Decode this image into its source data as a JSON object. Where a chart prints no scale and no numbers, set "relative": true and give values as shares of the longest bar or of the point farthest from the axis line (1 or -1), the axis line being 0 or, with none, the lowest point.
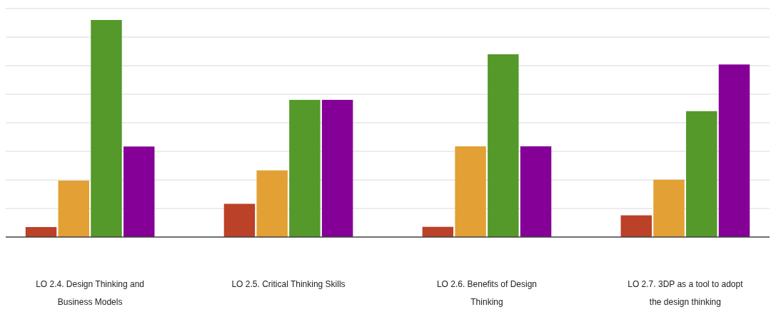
{
  "chart_data": {
    "type": "bar",
    "relative": true,
    "grid": "y",
    "categories": [
      "LO 2.4. Design Thinking and Business Models",
      "LO 2.5. Critical Thinking Skills",
      "LO 2.6. Benefits of Design Thinking",
      "LO 2.7. 3DP as a tool to adopt the design thinking"
    ],
    "series": [
      {
        "color": "#bb4128",
        "values": [
          0.046,
          0.153,
          0.047,
          0.1
        ]
      },
      {
        "color": "#e3a034",
        "values": [
          0.26,
          0.307,
          0.418,
          0.264
        ]
      },
      {
        "color": "#54992a",
        "values": [
          1,
          0.632,
          0.842,
          0.58
        ]
      },
      {
        "color": "#850096",
        "values": [
          0.417,
          0.632,
          0.418,
          0.795
        ]
      }
    ]
  }
}
